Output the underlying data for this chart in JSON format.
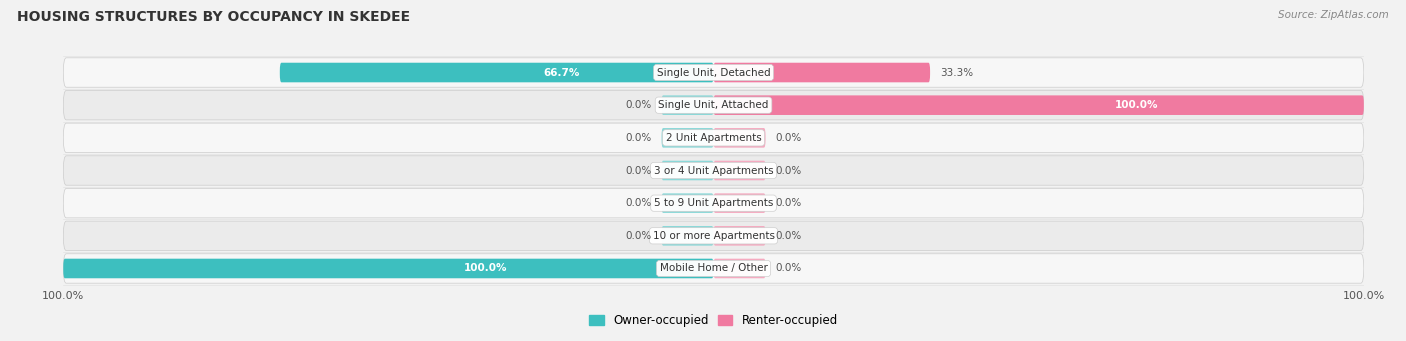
{
  "title": "HOUSING STRUCTURES BY OCCUPANCY IN SKEDEE",
  "source": "Source: ZipAtlas.com",
  "categories": [
    "Single Unit, Detached",
    "Single Unit, Attached",
    "2 Unit Apartments",
    "3 or 4 Unit Apartments",
    "5 to 9 Unit Apartments",
    "10 or more Apartments",
    "Mobile Home / Other"
  ],
  "owner_pct": [
    66.7,
    0.0,
    0.0,
    0.0,
    0.0,
    0.0,
    100.0
  ],
  "renter_pct": [
    33.3,
    100.0,
    0.0,
    0.0,
    0.0,
    0.0,
    0.0
  ],
  "owner_color": "#3dbfbf",
  "renter_color": "#f07aa0",
  "owner_stub_color": "#8ad8d8",
  "renter_stub_color": "#f5aac0",
  "bg_color": "#f2f2f2",
  "row_bg_light": "#f7f7f7",
  "row_bg_dark": "#ebebeb",
  "title_fontsize": 10,
  "label_fontsize": 8,
  "bar_height": 0.6,
  "stub_pct": 8.0,
  "legend_owner": "Owner-occupied",
  "legend_renter": "Renter-occupied"
}
